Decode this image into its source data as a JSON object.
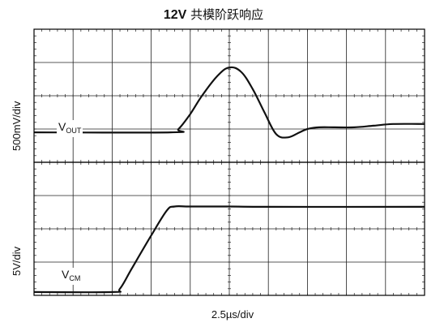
{
  "title": {
    "bold": "12V",
    "rest": "共模阶跃响应"
  },
  "chart_data": [
    {
      "type": "line",
      "panel": "top",
      "ylabel": "500mV/div",
      "xlabel": "2.5µs/div",
      "trace_label": {
        "main": "V",
        "sub": "OUT"
      },
      "x_divisions": 10,
      "y_divisions": 4,
      "grid": true,
      "x": [
        0,
        3.5,
        3.7,
        4.0,
        4.3,
        4.7,
        5.0,
        5.3,
        5.6,
        5.9,
        6.2,
        6.5,
        6.8,
        7.0,
        7.3,
        7.7,
        8.2,
        8.7,
        9.2,
        10
      ],
      "y": [
        -1.1,
        -1.1,
        -1.0,
        -0.55,
        0.0,
        0.6,
        0.85,
        0.72,
        0.2,
        -0.5,
        -1.15,
        -1.25,
        -1.1,
        -1.0,
        -0.95,
        -0.95,
        -0.95,
        -0.9,
        -0.85,
        -0.85
      ],
      "series": [
        {
          "values": [
            -1.1,
            -1.1,
            -1.0,
            -0.55,
            0.0,
            0.6,
            0.85,
            0.72,
            0.2,
            -0.5,
            -1.15,
            -1.25,
            -1.1,
            -1.0,
            -0.95,
            -0.95,
            -0.95,
            -0.9,
            -0.85,
            -0.85
          ]
        }
      ]
    },
    {
      "type": "line",
      "panel": "bottom",
      "ylabel": "5V/div",
      "xlabel": "2.5µs/div",
      "trace_label": {
        "main": "V",
        "sub": "CM"
      },
      "x_divisions": 10,
      "y_divisions": 4,
      "grid": true,
      "x": [
        0,
        2.0,
        2.2,
        2.5,
        3.0,
        3.4,
        3.6,
        4.0,
        5.0,
        6.0,
        10
      ],
      "y": [
        -1.9,
        -1.9,
        -1.8,
        -1.2,
        -0.2,
        0.55,
        0.67,
        0.67,
        0.67,
        0.66,
        0.66
      ],
      "series": [
        {
          "values": [
            -1.9,
            -1.9,
            -1.8,
            -1.2,
            -0.2,
            0.55,
            0.67,
            0.67,
            0.67,
            0.66,
            0.66
          ]
        }
      ]
    }
  ],
  "colors": {
    "trace": "#111111",
    "grid": "#222222",
    "frame": "#000000"
  }
}
